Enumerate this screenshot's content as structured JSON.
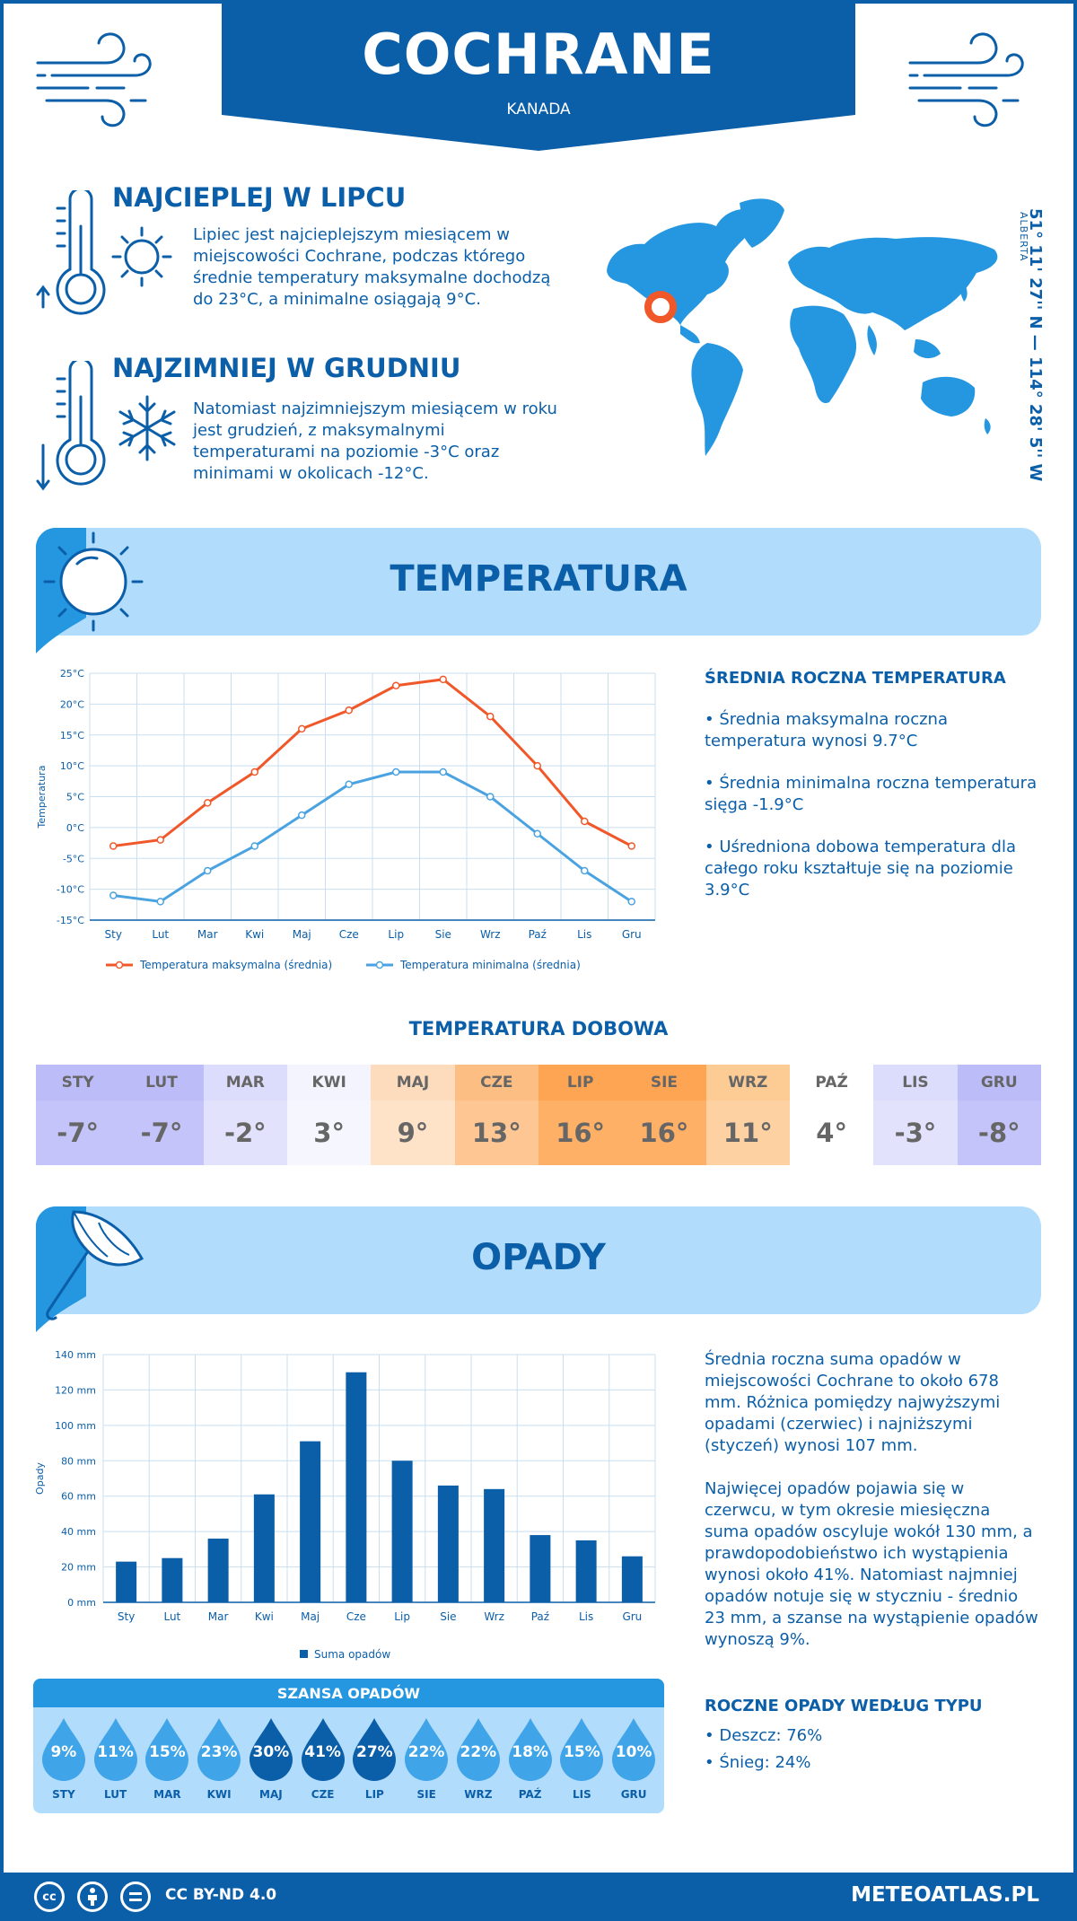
{
  "header": {
    "city": "COCHRANE",
    "country": "KANADA"
  },
  "warmest": {
    "title": "NAJCIEPLEJ W LIPCU",
    "lines": [
      "Lipiec jest najcieplejszym miesiącem w",
      "miejscowości Cochrane, podczas którego",
      "średnie temperatury maksymalne dochodzą",
      "do 23°C, a minimalne osiągają 9°C."
    ]
  },
  "coldest": {
    "title": "NAJZIMNIEJ W GRUDNIU",
    "lines": [
      "Natomiast najzimniejszym miesiącem w roku",
      "jest grudzień, z maksymalnymi",
      "temperaturami na poziomie -3°C oraz",
      "minimami w okolicach -12°C."
    ]
  },
  "location": {
    "coords": "51° 11' 27'' N — 114° 28' 5'' W",
    "region": "ALBERTA"
  },
  "temperature_section": {
    "title": "TEMPERATURA"
  },
  "temp_side": {
    "heading": "ŚREDNIA ROCZNA TEMPERATURA",
    "p1": [
      "• Średnia maksymalna roczna",
      "temperatura wynosi 9.7°C"
    ],
    "p2": [
      "• Średnia minimalna roczna temperatura",
      "sięga -1.9°C"
    ],
    "p3": [
      "• Uśredniona dobowa temperatura dla",
      "całego roku kształtuje się na poziomie",
      "3.9°C"
    ]
  },
  "daily": {
    "title": "TEMPERATURA DOBOWA",
    "months": [
      "STY",
      "LUT",
      "MAR",
      "KWI",
      "MAJ",
      "CZE",
      "LIP",
      "SIE",
      "WRZ",
      "PAŹ",
      "LIS",
      "GRU"
    ],
    "temps": [
      "-7°",
      "-7°",
      "-2°",
      "3°",
      "9°",
      "13°",
      "16°",
      "16°",
      "11°",
      "4°",
      "-3°",
      "-8°"
    ],
    "header_colors": [
      "#bcbcf8",
      "#bcbcf8",
      "#dcdcfc",
      "#f4f4fe",
      "#fddcbd",
      "#fdbe84",
      "#fda552",
      "#fda552",
      "#fdcb94",
      "#ffffff",
      "#dcdcfc",
      "#bcbcf8"
    ],
    "cell_colors": [
      "#c4c4fa",
      "#c4c4fa",
      "#e2e2fd",
      "#f6f6fe",
      "#fee3c8",
      "#fdc692",
      "#fdb066",
      "#fdb066",
      "#fed1a2",
      "#ffffff",
      "#e2e2fd",
      "#c4c4fa"
    ]
  },
  "precip_section": {
    "title": "OPADY"
  },
  "precip_side": {
    "p1": [
      "Średnia roczna suma opadów w",
      "miejscowości Cochrane to około 678",
      "mm. Różnica pomiędzy najwyższymi",
      "opadami (czerwiec) i najniższymi",
      "(styczeń) wynosi 107 mm."
    ],
    "p2": [
      "Najwięcej opadów pojawia się w",
      "czerwcu, w tym okresie miesięczna",
      "suma opadów oscyluje wokół 130 mm, a",
      "prawdopodobieństwo ich wystąpienia",
      "wynosi około 41%. Natomiast najmniej",
      "opadów notuje się w styczniu - średnio",
      "23 mm, a szanse na wystąpienie opadów",
      "wynoszą 9%."
    ],
    "type_heading": "ROCZNE OPADY WEDŁUG TYPU",
    "rain": "• Deszcz: 76%",
    "snow": "• Śnieg: 24%"
  },
  "chance": {
    "title": "SZANSA OPADÓW",
    "months": [
      "STY",
      "LUT",
      "MAR",
      "KWI",
      "MAJ",
      "CZE",
      "LIP",
      "SIE",
      "WRZ",
      "PAŹ",
      "LIS",
      "GRU"
    ],
    "values": [
      "9%",
      "11%",
      "15%",
      "23%",
      "30%",
      "41%",
      "27%",
      "22%",
      "22%",
      "18%",
      "15%",
      "10%"
    ],
    "colors": [
      "#3fa4e8",
      "#3fa4e8",
      "#3fa4e8",
      "#3fa4e8",
      "#0b5ea8",
      "#0b5ea8",
      "#0b5ea8",
      "#3fa4e8",
      "#3fa4e8",
      "#3fa4e8",
      "#3fa4e8",
      "#3fa4e8"
    ]
  },
  "footer": {
    "license": "CC BY-ND 4.0",
    "brand": "METEOATLAS.PL"
  },
  "chart_data": [
    {
      "type": "line",
      "categories": [
        "Sty",
        "Lut",
        "Mar",
        "Kwi",
        "Maj",
        "Cze",
        "Lip",
        "Sie",
        "Wrz",
        "Paź",
        "Lis",
        "Gru"
      ],
      "ylabel": "Temperatura",
      "ylim": [
        -15,
        25
      ],
      "yticks": [
        "-15°C",
        "-10°C",
        "-5°C",
        "0°C",
        "5°C",
        "10°C",
        "15°C",
        "20°C",
        "25°C"
      ],
      "grid": true,
      "legend_position": "bottom",
      "series": [
        {
          "name": "Temperatura maksymalna (średnia)",
          "color": "#f0582a",
          "values": [
            -3,
            -2,
            4,
            9,
            16,
            19,
            23,
            24,
            18,
            10,
            1,
            -3
          ]
        },
        {
          "name": "Temperatura minimalna (średnia)",
          "color": "#4aa3e0",
          "values": [
            -11,
            -12,
            -7,
            -3,
            2,
            7,
            9,
            9,
            5,
            -1,
            -7,
            -12
          ]
        }
      ]
    },
    {
      "type": "bar",
      "categories": [
        "Sty",
        "Lut",
        "Mar",
        "Kwi",
        "Maj",
        "Cze",
        "Lip",
        "Sie",
        "Wrz",
        "Paź",
        "Lis",
        "Gru"
      ],
      "ylabel": "Opady",
      "ylim": [
        0,
        140
      ],
      "yticks": [
        "0 mm",
        "20 mm",
        "40 mm",
        "60 mm",
        "80 mm",
        "100 mm",
        "120 mm",
        "140 mm"
      ],
      "grid": true,
      "legend_position": "bottom",
      "series": [
        {
          "name": "Suma opadów",
          "color": "#0b5ea8",
          "values": [
            23,
            25,
            36,
            61,
            91,
            130,
            80,
            66,
            64,
            38,
            35,
            26
          ]
        }
      ]
    }
  ]
}
